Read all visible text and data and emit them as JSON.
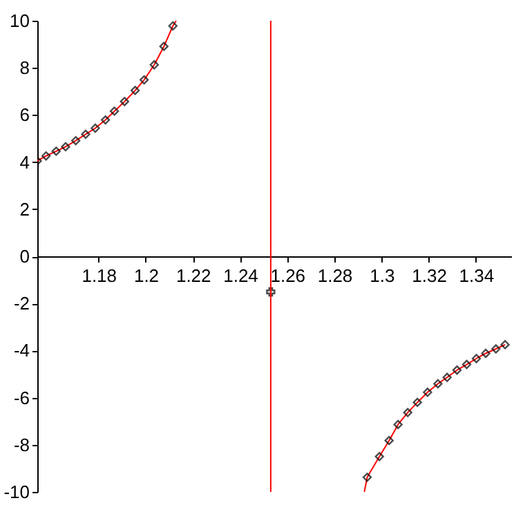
{
  "chart_data": {
    "type": "line",
    "xlim": [
      1.154,
      1.355
    ],
    "ylim": [
      -10,
      10
    ],
    "xticks": [
      1.18,
      1.2,
      1.22,
      1.24,
      1.26,
      1.28,
      1.3,
      1.32,
      1.34
    ],
    "yticks": [
      -10,
      -8,
      -6,
      -4,
      -2,
      0,
      2,
      4,
      6,
      8,
      10
    ],
    "grid": false,
    "series": [
      {
        "type": "line",
        "color": "#ff0000",
        "marker": "none",
        "x": [
          1.154,
          1.1577,
          1.162,
          1.166,
          1.1703,
          1.1745,
          1.1786,
          1.1829,
          1.1867,
          1.191,
          1.1955,
          1.1993,
          1.2036,
          1.2077,
          1.2115,
          1.2129
        ],
        "values": [
          4.05,
          4.26,
          4.46,
          4.65,
          4.91,
          5.18,
          5.44,
          5.79,
          6.16,
          6.57,
          7.04,
          7.49,
          8.13,
          8.91,
          9.78,
          10
        ]
      },
      {
        "type": "line",
        "color": "#ff0000",
        "marker": "none",
        "x": [
          1.2927,
          1.2939,
          1.2991,
          1.3032,
          1.307,
          1.3111,
          1.3152,
          1.3195,
          1.3239,
          1.3278,
          1.332,
          1.3361,
          1.3402,
          1.3442,
          1.3485,
          1.3524
        ],
        "values": [
          -10,
          -9.38,
          -8.5,
          -7.82,
          -7.14,
          -6.63,
          -6.2,
          -5.77,
          -5.41,
          -5.14,
          -4.83,
          -4.59,
          -4.34,
          -4.12,
          -3.93,
          -3.75
        ]
      },
      {
        "type": "scatter",
        "color": "#000000",
        "marker": "diamond",
        "x": [
          1.154,
          1.1577,
          1.162,
          1.166,
          1.1703,
          1.1745,
          1.1786,
          1.1829,
          1.1867,
          1.191,
          1.1955,
          1.1993,
          1.2036,
          1.2077,
          1.2115
        ],
        "values": [
          4.05,
          4.26,
          4.46,
          4.65,
          4.91,
          5.18,
          5.44,
          5.79,
          6.16,
          6.57,
          7.04,
          7.49,
          8.13,
          8.91,
          9.78
        ]
      },
      {
        "type": "scatter",
        "color": "#000000",
        "marker": "diamond",
        "x": [
          1.2939,
          1.2991,
          1.3032,
          1.307,
          1.3111,
          1.3152,
          1.3195,
          1.3239,
          1.3278,
          1.332,
          1.3361,
          1.3402,
          1.3442,
          1.3485,
          1.3524
        ],
        "values": [
          -9.38,
          -8.5,
          -7.82,
          -7.14,
          -6.63,
          -6.2,
          -5.77,
          -5.41,
          -5.14,
          -4.83,
          -4.59,
          -4.34,
          -4.12,
          -3.93,
          -3.75
        ]
      },
      {
        "type": "scatter",
        "color": "#000000",
        "marker": "cross",
        "x": [
          1.253
        ],
        "values": [
          -1.51
        ]
      }
    ],
    "ref_lines": [
      {
        "axis": "x",
        "value": 1.253,
        "color": "#ff0000"
      }
    ]
  }
}
